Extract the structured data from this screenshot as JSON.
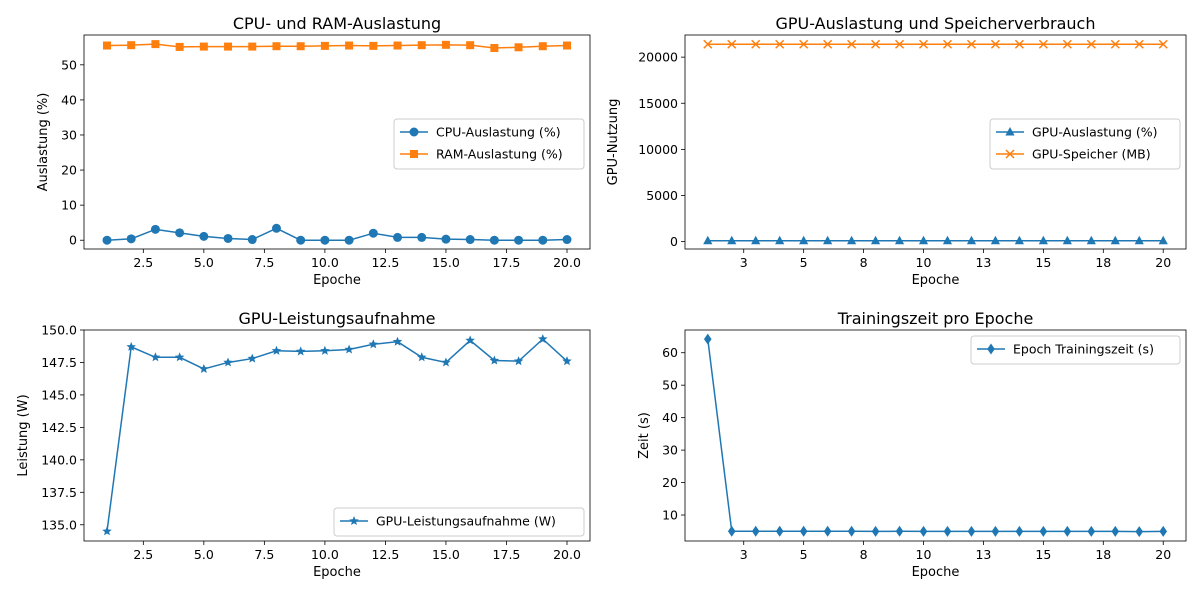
{
  "chart_data": [
    {
      "type": "line",
      "title": "CPU- und RAM-Auslastung",
      "xlabel": "Epoche",
      "ylabel": "Auslastung (%)",
      "xlim": [
        0.05,
        20.95
      ],
      "ylim": [
        -2.5,
        58.5
      ],
      "xticks": [
        2.5,
        5.0,
        7.5,
        10.0,
        12.5,
        15.0,
        17.5,
        20.0
      ],
      "yticks": [
        0,
        10,
        20,
        30,
        40,
        50
      ],
      "legend": "center-right",
      "x": [
        1,
        2,
        3,
        4,
        5,
        6,
        7,
        8,
        9,
        10,
        11,
        12,
        13,
        14,
        15,
        16,
        17,
        18,
        19,
        20
      ],
      "series": [
        {
          "name": "CPU-Auslastung (%)",
          "color": "#1f77b4",
          "marker": "circle",
          "values": [
            0.0,
            0.4,
            3.1,
            2.1,
            1.1,
            0.5,
            0.2,
            3.4,
            0.0,
            0.0,
            0.0,
            2.0,
            0.8,
            0.8,
            0.3,
            0.2,
            0.0,
            0.0,
            0.0,
            0.2
          ]
        },
        {
          "name": "RAM-Auslastung (%)",
          "color": "#ff7f0e",
          "marker": "square",
          "values": [
            55.5,
            55.6,
            55.9,
            55.1,
            55.2,
            55.2,
            55.2,
            55.3,
            55.3,
            55.4,
            55.5,
            55.4,
            55.5,
            55.6,
            55.7,
            55.6,
            54.8,
            55.0,
            55.3,
            55.5
          ]
        }
      ]
    },
    {
      "type": "line",
      "title": "GPU-Auslastung und Speicherverbrauch",
      "xlabel": "Epoche",
      "ylabel": "GPU-Nutzung",
      "xlim": [
        0.05,
        20.95
      ],
      "ylim": [
        -800,
        22400
      ],
      "xticks": [
        2.5,
        5.0,
        7.5,
        10.0,
        12.5,
        15.0,
        17.5,
        20.0
      ],
      "yticks": [
        0,
        5000,
        10000,
        15000,
        20000
      ],
      "legend": "center-right",
      "x": [
        1,
        2,
        3,
        4,
        5,
        6,
        7,
        8,
        9,
        10,
        11,
        12,
        13,
        14,
        15,
        16,
        17,
        18,
        19,
        20
      ],
      "series": [
        {
          "name": "GPU-Auslastung (%)",
          "color": "#1f77b4",
          "marker": "triangle",
          "values": [
            100,
            100,
            100,
            100,
            100,
            100,
            100,
            100,
            100,
            100,
            100,
            100,
            100,
            100,
            100,
            100,
            100,
            100,
            100,
            100
          ]
        },
        {
          "name": "GPU-Speicher (MB)",
          "color": "#ff7f0e",
          "marker": "x",
          "values": [
            21400,
            21400,
            21400,
            21400,
            21400,
            21400,
            21400,
            21400,
            21400,
            21400,
            21400,
            21400,
            21400,
            21400,
            21400,
            21400,
            21400,
            21400,
            21400,
            21400
          ]
        }
      ]
    },
    {
      "type": "line",
      "title": "GPU-Leistungsaufnahme",
      "xlabel": "Epoche",
      "ylabel": "Leistung (W)",
      "xlim": [
        0.05,
        20.95
      ],
      "ylim": [
        133.75,
        150.0
      ],
      "xticks": [
        2.5,
        5.0,
        7.5,
        10.0,
        12.5,
        15.0,
        17.5,
        20.0
      ],
      "yticks": [
        135.0,
        137.5,
        140.0,
        142.5,
        145.0,
        147.5,
        150.0
      ],
      "legend": "lower-right",
      "x": [
        1,
        2,
        3,
        4,
        5,
        6,
        7,
        8,
        9,
        10,
        11,
        12,
        13,
        14,
        15,
        16,
        17,
        18,
        19,
        20
      ],
      "series": [
        {
          "name": "GPU-Leistungsaufnahme (W)",
          "color": "#1f77b4",
          "marker": "star",
          "values": [
            134.5,
            148.7,
            147.9,
            147.9,
            147.0,
            147.5,
            147.8,
            148.4,
            148.35,
            148.4,
            148.5,
            148.9,
            149.1,
            147.9,
            147.5,
            149.2,
            147.65,
            147.6,
            149.3,
            147.6
          ]
        }
      ]
    },
    {
      "type": "line",
      "title": "Trainingszeit pro Epoche",
      "xlabel": "Epoche",
      "ylabel": "Zeit (s)",
      "xlim": [
        0.05,
        20.95
      ],
      "ylim": [
        2.0,
        67.0
      ],
      "xticks": [
        2.5,
        5.0,
        7.5,
        10.0,
        12.5,
        15.0,
        17.5,
        20.0
      ],
      "yticks": [
        10,
        20,
        30,
        40,
        50,
        60
      ],
      "legend": "top-right",
      "x": [
        1,
        2,
        3,
        4,
        5,
        6,
        7,
        8,
        9,
        10,
        11,
        12,
        13,
        14,
        15,
        16,
        17,
        18,
        19,
        20
      ],
      "series": [
        {
          "name": "Epoch Trainingszeit (s)",
          "color": "#1f77b4",
          "marker": "diamond",
          "values": [
            64.2,
            5.0,
            5.0,
            5.0,
            5.0,
            5.0,
            5.0,
            4.95,
            5.0,
            4.95,
            4.95,
            4.95,
            4.95,
            4.95,
            4.95,
            4.95,
            4.95,
            4.95,
            4.9,
            4.95
          ]
        }
      ]
    }
  ]
}
